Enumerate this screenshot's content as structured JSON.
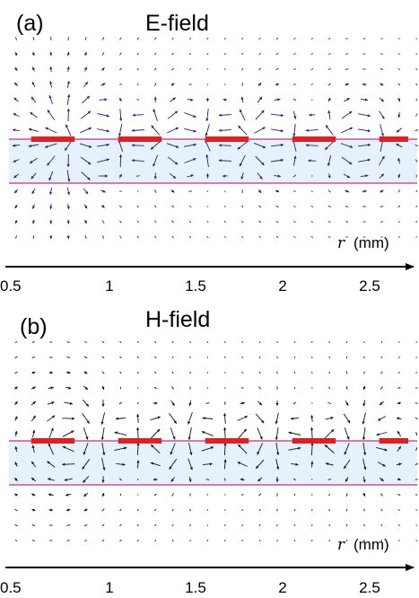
{
  "figure": {
    "panels": [
      {
        "id": "a",
        "label": "(a)",
        "title": "E-field",
        "arrow_color": "#1c1c8c",
        "axis_variable": "r",
        "axis_unit": "(mm)",
        "ticks": [
          "0.5",
          "1",
          "1.5",
          "2",
          "2.5"
        ]
      },
      {
        "id": "b",
        "label": "(b)",
        "title": "H-field",
        "arrow_color": "#111111",
        "axis_variable": "r",
        "axis_unit": "(mm)",
        "ticks": [
          "0.5",
          "1",
          "1.5",
          "2",
          "2.5"
        ]
      }
    ],
    "tick_values": [
      0.5,
      1,
      1.5,
      2,
      2.5
    ],
    "x_range": [
      0.5,
      2.75
    ],
    "strips": [
      [
        0.55,
        0.8
      ],
      [
        1.05,
        1.3
      ],
      [
        1.55,
        1.8
      ],
      [
        2.05,
        2.3
      ],
      [
        2.55,
        2.75
      ]
    ],
    "colors": {
      "strip": "#e02020",
      "substrate_fill": "#e6f1fb",
      "substrate_edge": "#c0308a",
      "axis": "#000000"
    }
  }
}
